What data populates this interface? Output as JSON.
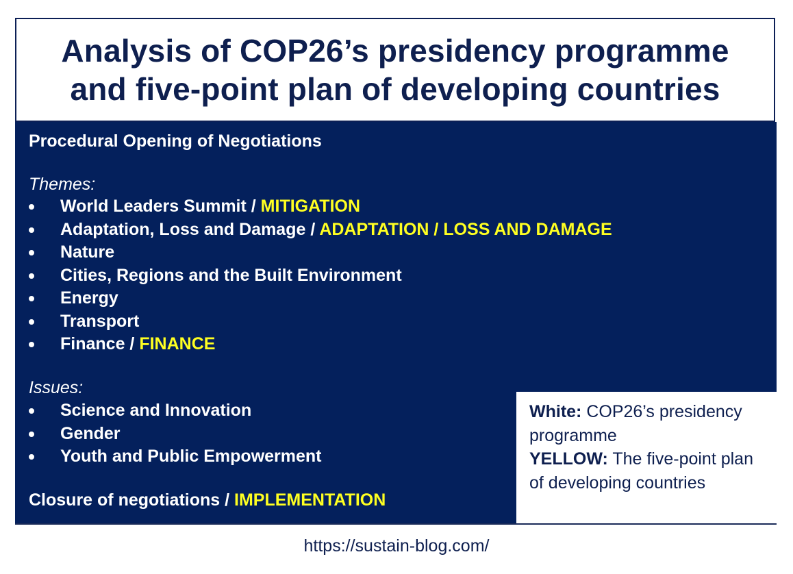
{
  "title": {
    "line1": "Analysis of COP26’s presidency programme",
    "line2": "and five-point plan of developing countries"
  },
  "opening": "Procedural Opening of Negotiations",
  "themes": {
    "label": "Themes:",
    "items": [
      {
        "text": "World Leaders Summit",
        "highlight": "MITIGATION"
      },
      {
        "text": "Adaptation, Loss and Damage",
        "highlight": "ADAPTATION / LOSS AND DAMAGE"
      },
      {
        "text": "Nature",
        "highlight": ""
      },
      {
        "text": "Cities, Regions and the Built Environment",
        "highlight": ""
      },
      {
        "text": "Energy",
        "highlight": ""
      },
      {
        "text": "Transport",
        "highlight": ""
      },
      {
        "text": "Finance",
        "highlight": "FINANCE"
      }
    ]
  },
  "issues": {
    "label": "Issues:",
    "items": [
      {
        "text": "Science and Innovation"
      },
      {
        "text": "Gender"
      },
      {
        "text": "Youth and Public Empowerment"
      }
    ]
  },
  "closure": {
    "text": "Closure of negotiations",
    "highlight": "IMPLEMENTATION"
  },
  "legend": {
    "white_key": "White:",
    "white_desc": "COP26’s presidency programme",
    "yellow_key": "YELLOW:",
    "yellow_desc": "The five-point plan of developing countries"
  },
  "footer_url": "https://sustain-blog.com/",
  "colors": {
    "panel_bg": "#04205c",
    "highlight": "#ffff21",
    "title_text": "#0e1f4f"
  }
}
